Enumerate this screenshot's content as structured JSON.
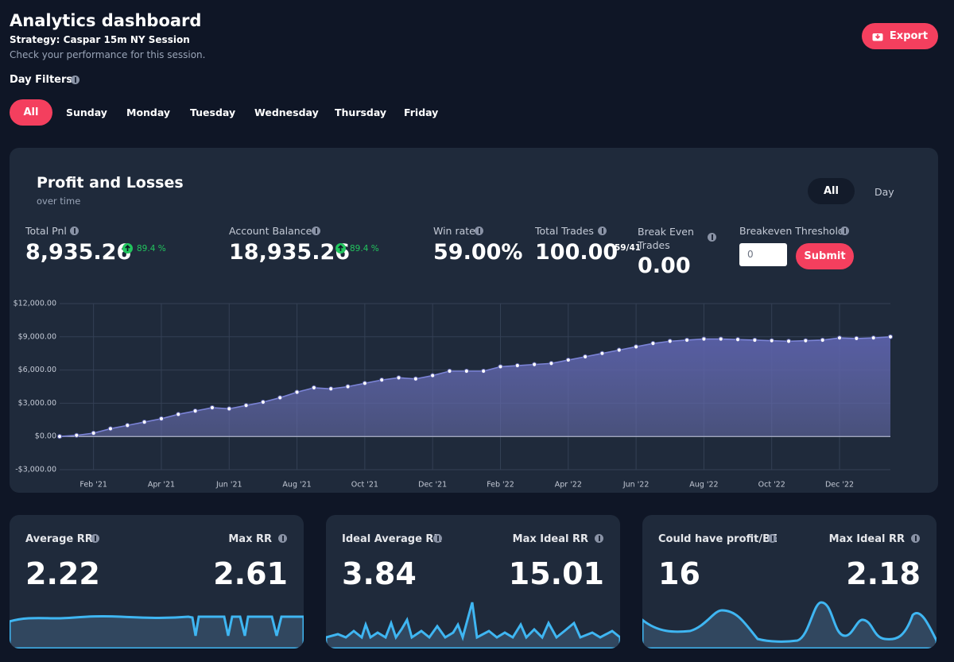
{
  "header": {
    "title": "Analytics dashboard",
    "strategy": "Strategy: Caspar 15m NY Session",
    "subtitle": "Check your performance for this session.",
    "export": "Export"
  },
  "day_filters": {
    "label": "Day Filters",
    "options": [
      "All",
      "Sunday",
      "Monday",
      "Tuesday",
      "Wednesday",
      "Thursday",
      "Friday"
    ]
  },
  "panel": {
    "title": "Profit and Losses",
    "subtitle": "over time",
    "toggle": [
      "All",
      "Day"
    ],
    "stats": [
      {
        "label": "Total Pnl",
        "value": "8,935.26",
        "change": "89.4 %"
      },
      {
        "label": "Account Balance",
        "value": "18,935.26",
        "change": "89.4 %"
      },
      {
        "label": "Win rate",
        "value": "59.00%"
      },
      {
        "label": "Total Trades",
        "value": "100.00",
        "ratio": "59/41"
      },
      {
        "label": "Break Even Trades",
        "value": "0.00"
      }
    ],
    "threshold": {
      "label": "Breakeven Threshold",
      "input": "0",
      "submit": "Submit"
    }
  },
  "chart_data": {
    "type": "area",
    "color": "#7b83d6",
    "grid": true,
    "markers": true,
    "categories": [
      null,
      null,
      "Feb '21",
      null,
      null,
      null,
      "Apr '21",
      null,
      null,
      null,
      "Jun '21",
      null,
      null,
      null,
      "Aug '21",
      null,
      null,
      null,
      "Oct '21",
      null,
      null,
      null,
      "Dec '21",
      null,
      null,
      null,
      "Feb '22",
      null,
      null,
      null,
      "Apr '22",
      null,
      null,
      null,
      "Jun '22",
      null,
      null,
      null,
      "Aug '22",
      null,
      null,
      null,
      "Oct '22",
      null,
      null,
      null,
      "Dec '22",
      null,
      null,
      null
    ],
    "values": [
      0,
      100,
      300,
      700,
      1000,
      1300,
      1600,
      2000,
      2300,
      2600,
      2500,
      2800,
      3100,
      3500,
      4000,
      4400,
      4300,
      4500,
      4800,
      5100,
      5300,
      5200,
      5500,
      5900,
      5900,
      5900,
      6300,
      6400,
      6500,
      6600,
      6900,
      7200,
      7500,
      7800,
      8100,
      8400,
      8600,
      8700,
      8800,
      8800,
      8750,
      8700,
      8650,
      8600,
      8650,
      8700,
      8900,
      8850,
      8900,
      9000
    ],
    "ylim": [
      -3000,
      12000
    ],
    "yticks": [
      {
        "value": -3000,
        "label": "-$3,000.00"
      },
      {
        "value": 0,
        "label": "$0.00"
      },
      {
        "value": 3000,
        "label": "$3,000.00"
      },
      {
        "value": 6000,
        "label": "$6,000.00"
      },
      {
        "value": 9000,
        "label": "$9,000.00"
      },
      {
        "value": 12000,
        "label": "$12,000.00"
      }
    ]
  },
  "cards": [
    {
      "left_label": "Average RR",
      "left_value": "2.22",
      "right_label": "Max RR",
      "right_value": "2.61"
    },
    {
      "left_label": "Ideal Average RR",
      "left_value": "3.84",
      "right_label": "Max Ideal RR",
      "right_value": "15.01"
    },
    {
      "left_label": "Could have profit/BE",
      "left_value": "16",
      "right_label": "Max Ideal RR",
      "right_value": "2.18"
    }
  ]
}
